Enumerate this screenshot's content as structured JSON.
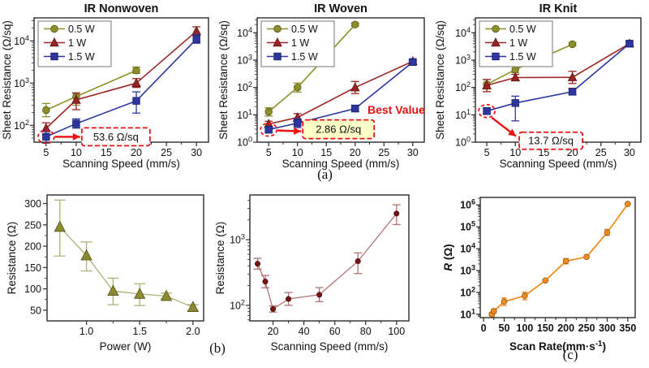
{
  "figure": {
    "panel_labels": {
      "a": "(a)",
      "b": "(b)",
      "c": "(c)"
    },
    "accent_colors": {
      "olive": "#8f8f29",
      "dark_red": "#9a2424",
      "navy": "#2d35a0",
      "orange": "#f28c1e",
      "annotation_red": "#ee1111"
    }
  },
  "chart_data": [
    {
      "id": "ir-nonwoven",
      "type": "line",
      "title": "IR Nonwoven",
      "xlabel": "Scanning Speed (mm/s)",
      "ylabel": "Sheet Resistance (Ω/sq)",
      "xscale": "linear",
      "yscale": "log",
      "xlim": [
        3,
        32
      ],
      "ylim": [
        40,
        35000
      ],
      "xticks": [
        5,
        10,
        15,
        20,
        25,
        30
      ],
      "ytick_exponents": [
        2,
        3,
        4
      ],
      "legend_show": true,
      "series": [
        {
          "name": "0.5 W",
          "color": "#8f8f29",
          "marker": "circle",
          "x": [
            5,
            10,
            20
          ],
          "y": [
            230,
            480,
            2000
          ],
          "ylo": [
            160,
            300,
            1700
          ],
          "yhi": [
            330,
            590,
            2400
          ]
        },
        {
          "name": "1 W",
          "color": "#9a2424",
          "marker": "triangle",
          "x": [
            5,
            10,
            20,
            30
          ],
          "y": [
            85,
            400,
            1000,
            17000
          ],
          "ylo": [
            62,
            235,
            790,
            13500
          ],
          "yhi": [
            115,
            580,
            1280,
            21500
          ]
        },
        {
          "name": "1.5 W",
          "color": "#2d35a0",
          "marker": "square",
          "x": [
            5,
            10,
            20,
            30
          ],
          "y": [
            53.6,
            110,
            380,
            11000
          ],
          "ylo": [
            38,
            86,
            195,
            8800
          ],
          "yhi": [
            76,
            142,
            620,
            14200
          ]
        }
      ],
      "annotations": {
        "point": [
          5,
          53.6
        ],
        "color": "#ee1111",
        "callout": {
          "text": "53.6 Ω/sq",
          "fill": "#ffffff"
        }
      }
    },
    {
      "id": "ir-woven",
      "type": "line",
      "title": "IR Woven",
      "xlabel": "Scanning Speed (mm/s)",
      "ylabel": "Sheet Resistance (Ω/sq)",
      "xscale": "linear",
      "yscale": "log",
      "xlim": [
        3,
        32
      ],
      "ylim": [
        1,
        35000
      ],
      "xticks": [
        5,
        10,
        15,
        20,
        25,
        30
      ],
      "ytick_exponents": [
        0,
        1,
        2,
        3,
        4
      ],
      "legend_show": true,
      "series": [
        {
          "name": "0.5 W",
          "color": "#8f8f29",
          "marker": "circle",
          "x": [
            5,
            10,
            20
          ],
          "y": [
            13,
            100,
            20000
          ],
          "ylo": [
            9,
            68,
            17800
          ],
          "yhi": [
            18,
            145,
            22800
          ]
        },
        {
          "name": "1 W",
          "color": "#9a2424",
          "marker": "triangle",
          "x": [
            5,
            10,
            20,
            30
          ],
          "y": [
            4.6,
            8,
            100,
            900
          ],
          "ylo": [
            3.6,
            5.8,
            60,
            800
          ],
          "yhi": [
            5.8,
            11,
            165,
            1010
          ]
        },
        {
          "name": "1.5 W",
          "color": "#2d35a0",
          "marker": "square",
          "x": [
            5,
            10,
            20,
            30
          ],
          "y": [
            2.86,
            5,
            17,
            850
          ],
          "ylo": [
            2.2,
            3.4,
            13,
            745
          ],
          "yhi": [
            3.7,
            7.2,
            22,
            960
          ]
        }
      ],
      "annotations": {
        "point": [
          5,
          2.86
        ],
        "color": "#ee1111",
        "callout": {
          "text": "2.86 Ω/sq",
          "fill": "#ffffc8"
        },
        "best_value": {
          "text": "Best Value",
          "color": "#e81010"
        }
      }
    },
    {
      "id": "ir-knit",
      "type": "line",
      "title": "IR Knit",
      "xlabel": "Scanning Speed (mm/s)",
      "ylabel": "Sheet Resistance (Ω/sq)",
      "xscale": "linear",
      "yscale": "log",
      "xlim": [
        3,
        32
      ],
      "ylim": [
        1,
        35000
      ],
      "xticks": [
        5,
        10,
        15,
        20,
        25,
        30
      ],
      "ytick_exponents": [
        0,
        1,
        2,
        3,
        4
      ],
      "legend_show": true,
      "series": [
        {
          "name": "0.5 W",
          "color": "#8f8f29",
          "marker": "circle",
          "x": [
            5,
            10,
            20
          ],
          "y": [
            130,
            450,
            3800
          ],
          "ylo": [
            88,
            345,
            3350
          ],
          "yhi": [
            195,
            590,
            4300
          ]
        },
        {
          "name": "1 W",
          "color": "#9a2424",
          "marker": "triangle",
          "x": [
            5,
            10,
            20,
            30
          ],
          "y": [
            120,
            230,
            235,
            4000
          ],
          "ylo": [
            70,
            178,
            140,
            3500
          ],
          "yhi": [
            195,
            300,
            390,
            4600
          ]
        },
        {
          "name": "1.5 W",
          "color": "#2d35a0",
          "marker": "square",
          "x": [
            5,
            10,
            20,
            30
          ],
          "y": [
            13.7,
            27,
            70,
            4000
          ],
          "ylo": [
            10.5,
            6,
            54,
            3480
          ],
          "yhi": [
            17.5,
            48,
            92,
            4620
          ]
        }
      ],
      "annotations": {
        "point": [
          5,
          13.7
        ],
        "color": "#ee1111",
        "callout": {
          "text": "13.7 Ω/sq",
          "fill": "#ffffff"
        }
      }
    },
    {
      "id": "resistance-vs-power",
      "type": "line",
      "title": "",
      "xlabel": "Power (W)",
      "ylabel": "Resistance (Ω)",
      "xscale": "linear",
      "yscale": "linear",
      "xlim": [
        0.63,
        2.1
      ],
      "ylim": [
        25,
        320
      ],
      "xticks": [
        1.0,
        1.5,
        2.0
      ],
      "xtick_labels": [
        "1.0",
        "1.5",
        "2.0"
      ],
      "yticks": [
        50,
        100,
        150,
        200,
        250,
        300
      ],
      "legend_show": false,
      "series": [
        {
          "name": "resistance",
          "color": "#8a8a2e",
          "line_color": "#b0b078",
          "err_color": "#b0b078",
          "marker": "triangle",
          "x": [
            0.75,
            1.0,
            1.25,
            1.5,
            1.75,
            2.0
          ],
          "y": [
            245,
            178,
            95,
            88,
            83,
            57
          ],
          "ylo": [
            177,
            142,
            63,
            61,
            77,
            50
          ],
          "yhi": [
            308,
            210,
            125,
            112,
            90,
            63
          ]
        }
      ]
    },
    {
      "id": "resistance-vs-scanning-speed",
      "type": "line",
      "title": "",
      "xlabel": "Scanning Speed (mm/s)",
      "ylabel": "Resistance (Ω)",
      "xscale": "linear",
      "yscale": "log",
      "xlim": [
        5,
        108
      ],
      "ylim": [
        58,
        4800
      ],
      "xticks": [
        20,
        40,
        60,
        80,
        100
      ],
      "ytick_exponents": [
        2,
        3
      ],
      "legend_show": false,
      "series": [
        {
          "name": "resistance",
          "color": "#7a1414",
          "line_color": "#b07272",
          "err_color": "#b07272",
          "marker": "circle",
          "x": [
            10,
            15,
            20,
            30,
            50,
            75,
            100
          ],
          "y": [
            430,
            230,
            88,
            125,
            145,
            470,
            2500
          ],
          "ylo": [
            355,
            185,
            79,
            100,
            114,
            305,
            1700
          ],
          "yhi": [
            520,
            285,
            98,
            157,
            186,
            630,
            3400
          ]
        }
      ]
    },
    {
      "id": "r-vs-scan-rate",
      "type": "line",
      "title": "",
      "xlabel": "Scan Rate(mm·s{sup:-1})",
      "ylabel": "{it:R} (Ω)",
      "bold_labels": true,
      "bold_ticks": true,
      "xscale": "linear",
      "yscale": "log",
      "xlim": [
        -8,
        368
      ],
      "ylim": [
        7,
        2200000
      ],
      "xticks": [
        0,
        50,
        100,
        150,
        200,
        250,
        300,
        350
      ],
      "ytick_exponents": [
        1,
        2,
        3,
        4,
        5,
        6
      ],
      "legend_show": false,
      "series": [
        {
          "name": "R",
          "color": "#f28c1e",
          "marker": "circle",
          "x": [
            20,
            25,
            50,
            100,
            150,
            200,
            250,
            300,
            350
          ],
          "y": [
            10,
            14,
            38,
            70,
            350,
            2700,
            4200,
            55000,
            1100000
          ],
          "ylo": [
            8,
            11,
            25,
            46,
            330,
            2000,
            4000,
            40000,
            1040000
          ],
          "yhi": [
            12,
            17,
            56,
            102,
            372,
            3500,
            4450,
            76000,
            1170000
          ]
        }
      ]
    }
  ]
}
